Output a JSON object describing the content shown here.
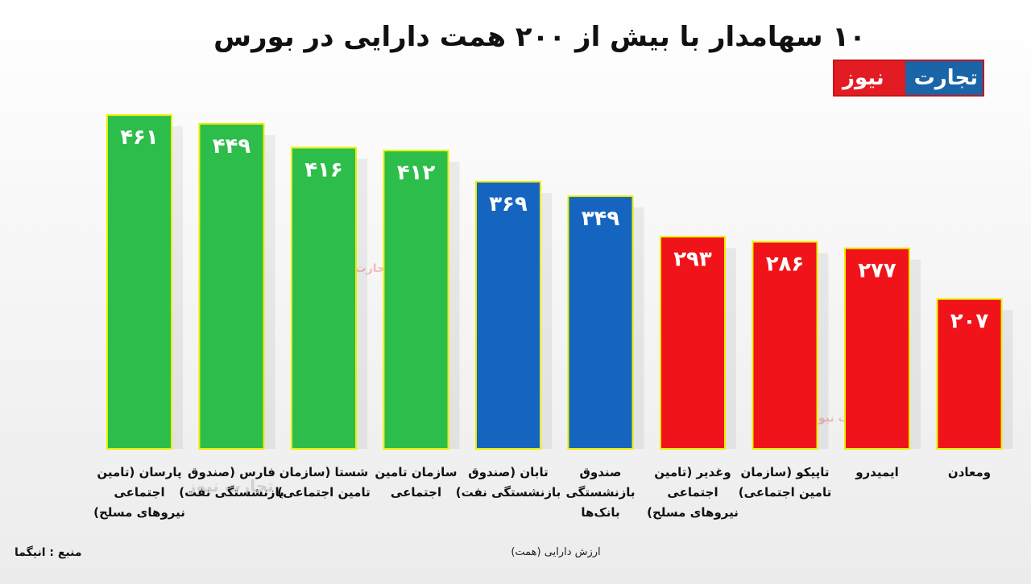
{
  "header": {
    "title": "۱۰ سهامدار با بیش از ۲۰۰ همت دارایی در بورس",
    "logo_left": "نیوز",
    "logo_right": "تجارت"
  },
  "watermarks": [
    "تجارت نیوز",
    "تجارت نیوز",
    "تجارت نیوز"
  ],
  "footer": {
    "source": "منبع : انیگما"
  },
  "chart_data": {
    "type": "bar",
    "title": "۱۰ سهامدار با بیش از ۲۰۰ همت دارایی در بورس",
    "xlabel": "ارزش دارایی (همت)",
    "ylabel": "",
    "ylim": [
      0,
      470
    ],
    "categories": [
      [
        "پارسان (تامین",
        "اجتماعی",
        "نیروهای مسلح)"
      ],
      [
        "فارس (صندوق",
        "بازنشستگی نفت)"
      ],
      [
        "شستا (سازمان",
        "تامین اجتماعی)"
      ],
      [
        "سازمان تامین",
        "اجتماعی"
      ],
      [
        "تابان (صندوق",
        "بازنشستگی نفت)"
      ],
      [
        "صندوق",
        "بازنشستگی",
        "بانک‌ها"
      ],
      [
        "وغدیر (تامین",
        "اجتماعی",
        "نیروهای مسلح)"
      ],
      [
        "تاپیکو (سازمان",
        "تامین اجتماعی)"
      ],
      [
        "ایمیدرو"
      ],
      [
        "ومعادن"
      ]
    ],
    "values": [
      461,
      449,
      416,
      412,
      369,
      349,
      293,
      286,
      277,
      207
    ],
    "value_labels": [
      "۴۶۱",
      "۴۴۹",
      "۴۱۶",
      "۴۱۲",
      "۳۶۹",
      "۳۴۹",
      "۲۹۳",
      "۲۸۶",
      "۲۷۷",
      "۲۰۷"
    ],
    "bar_colors": [
      "#2dbd4a",
      "#2dbd4a",
      "#2dbd4a",
      "#2dbd4a",
      "#1565c0",
      "#1565c0",
      "#f0141a",
      "#f0141a",
      "#f0141a",
      "#f0141a"
    ],
    "bar_border_color": "#e8f000",
    "grid": false,
    "legend": "none"
  }
}
